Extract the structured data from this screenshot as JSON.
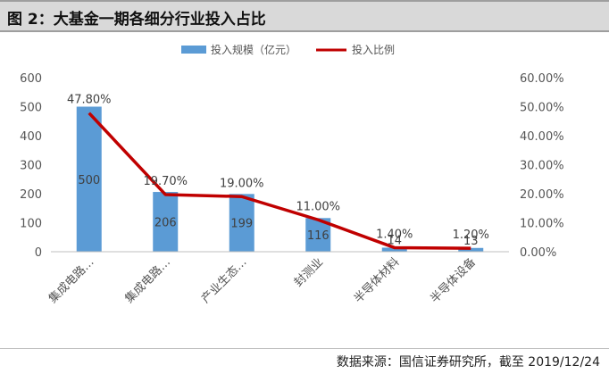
{
  "figure_title": "图 2：大基金一期各细分行业投入占比",
  "source_note": "数据来源：国信证券研究所，截至 2019/12/24",
  "colors": {
    "bar": "#5b9bd5",
    "line": "#c00000",
    "axis": "#bfbfbf",
    "text": "#555555"
  },
  "chart_data": {
    "type": "bar",
    "title": "",
    "categories": [
      "集成电路…",
      "集成电路…",
      "产业生态…",
      "封测业",
      "半导体材料",
      "半导体设备"
    ],
    "series": [
      {
        "name": "投入规模（亿元）",
        "type": "bar",
        "axis": "left",
        "values": [
          500,
          206,
          199,
          116,
          14,
          13
        ],
        "value_labels": [
          "500",
          "206",
          "199",
          "116",
          "14",
          "13"
        ]
      },
      {
        "name": "投入比例",
        "type": "line",
        "axis": "right",
        "values": [
          47.8,
          19.7,
          19.0,
          11.0,
          1.4,
          1.2
        ],
        "value_labels": [
          "47.80%",
          "19.70%",
          "19.00%",
          "11.00%",
          "1.40%",
          "1.20%"
        ]
      }
    ],
    "y_left": {
      "min": 0,
      "max": 600,
      "ticks": [
        "0",
        "100",
        "200",
        "300",
        "400",
        "500",
        "600"
      ]
    },
    "y_right": {
      "min": 0,
      "max": 60,
      "ticks": [
        "0.00%",
        "10.00%",
        "20.00%",
        "30.00%",
        "40.00%",
        "50.00%",
        "60.00%"
      ]
    },
    "legend_position": "top",
    "grid": false
  }
}
